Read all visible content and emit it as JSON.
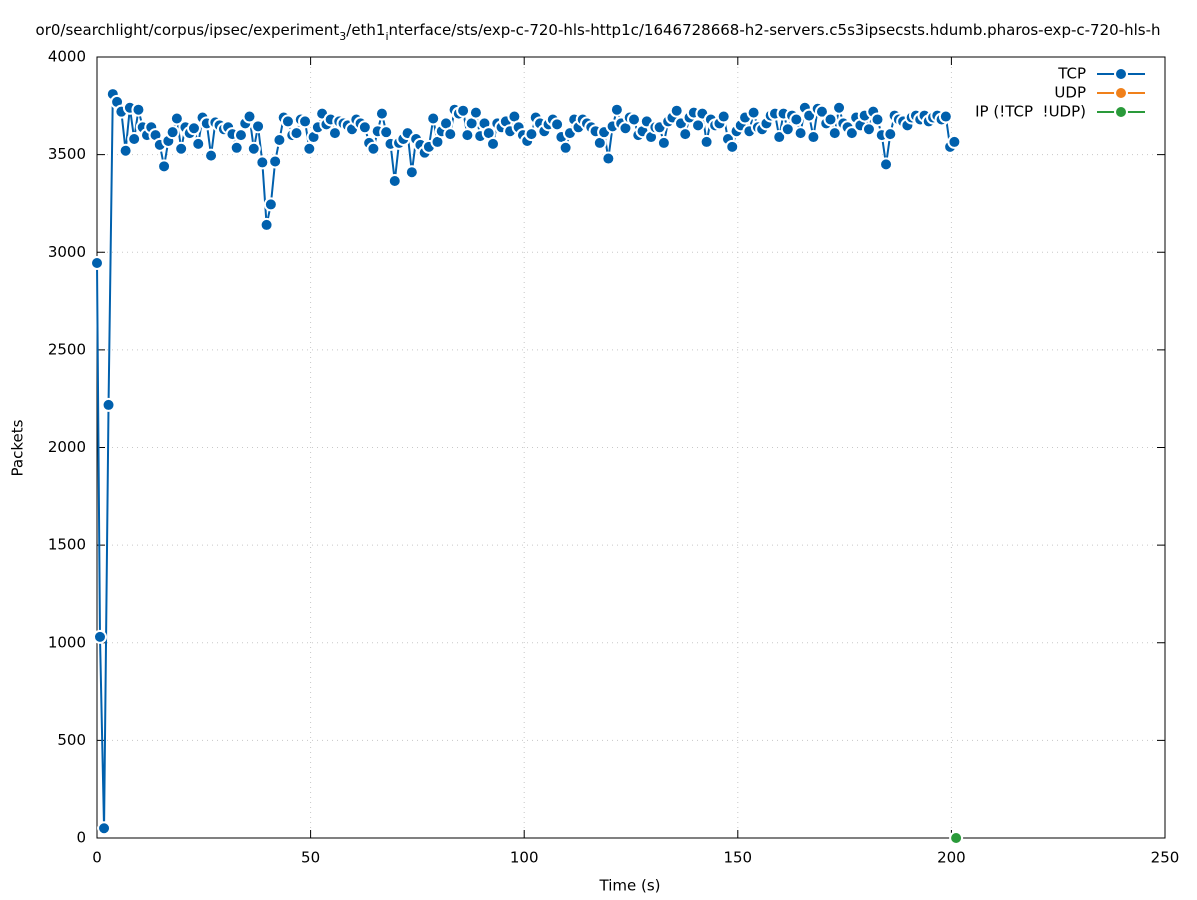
{
  "chart_data": {
    "type": "line",
    "title_segments": [
      "or0/searchlight/corpus/ipsec/experiment",
      "3",
      "/eth1",
      "i",
      "nterface/sts/exp-c-720-hls-http1c/1646728668-h2-servers.c5s3ipsecsts.hdumb.pharos-exp-c-720-hls-h"
    ],
    "xlabel": "Time (s)",
    "ylabel": "Packets",
    "xlim": [
      0,
      250
    ],
    "ylim": [
      0,
      4000
    ],
    "xticks": [
      0,
      50,
      100,
      150,
      200,
      250
    ],
    "yticks": [
      0,
      500,
      1000,
      1500,
      2000,
      2500,
      3000,
      3500,
      4000
    ],
    "grid": true,
    "legend": "top right",
    "series": [
      {
        "name": "TCP",
        "color": "#0060ad",
        "x": [
          0,
          0.7,
          1.65,
          2.7,
          3.7,
          4.7,
          5.7,
          6.7,
          7.7,
          8.7,
          9.7,
          10.7,
          11.7,
          12.7,
          13.7,
          14.7,
          15.7,
          16.7,
          17.7,
          18.7,
          19.7,
          20.7,
          21.7,
          22.7,
          23.7,
          24.7,
          25.7,
          26.7,
          27.7,
          28.7,
          29.7,
          30.7,
          31.7,
          32.7,
          33.7,
          34.7,
          35.7,
          36.7,
          37.7,
          38.7,
          39.7,
          40.7,
          41.7,
          42.7,
          43.7,
          44.7,
          45.7,
          46.7,
          47.7,
          48.7,
          49.7,
          50.7,
          51.7,
          52.7,
          53.7,
          54.7,
          55.7,
          56.7,
          57.7,
          58.7,
          59.7,
          60.7,
          61.7,
          62.7,
          63.7,
          64.7,
          65.7,
          66.7,
          67.7,
          68.7,
          69.7,
          70.7,
          71.7,
          72.7,
          73.7,
          74.7,
          75.7,
          76.7,
          77.7,
          78.7,
          79.7,
          80.7,
          81.7,
          82.7,
          83.7,
          84.7,
          85.7,
          86.7,
          87.7,
          88.7,
          89.7,
          90.7,
          91.7,
          92.7,
          93.7,
          94.7,
          95.7,
          96.7,
          97.7,
          98.7,
          99.7,
          100.7,
          101.7,
          102.7,
          103.7,
          104.7,
          105.7,
          106.7,
          107.7,
          108.7,
          109.7,
          110.7,
          111.7,
          112.7,
          113.7,
          114.7,
          115.7,
          116.7,
          117.7,
          118.7,
          119.7,
          120.7,
          121.7,
          122.7,
          123.7,
          124.7,
          125.7,
          126.7,
          127.7,
          128.7,
          129.7,
          130.7,
          131.7,
          132.7,
          133.7,
          134.7,
          135.7,
          136.7,
          137.7,
          138.7,
          139.7,
          140.7,
          141.7,
          142.7,
          143.7,
          144.7,
          145.7,
          146.7,
          147.7,
          148.7,
          149.7,
          150.7,
          151.7,
          152.7,
          153.7,
          154.7,
          155.7,
          156.7,
          157.7,
          158.7,
          159.7,
          160.7,
          161.7,
          162.7,
          163.7,
          164.7,
          165.7,
          166.7,
          167.7,
          168.7,
          169.7,
          170.7,
          171.7,
          172.7,
          173.7,
          174.7,
          175.7,
          176.7,
          177.7,
          178.7,
          179.7,
          180.7,
          181.7,
          182.7,
          183.7,
          184.7,
          185.7,
          186.7,
          187.7,
          188.7,
          189.7,
          190.7,
          191.7,
          192.7,
          193.7,
          194.7,
          195.7,
          196.7,
          197.7,
          198.7,
          199.7,
          200.7
        ],
        "values": [
          2945,
          1030,
          50,
          2218,
          3810,
          3770,
          3720,
          3520,
          3740,
          3580,
          3730,
          3640,
          3600,
          3640,
          3600,
          3550,
          3440,
          3570,
          3615,
          3685,
          3530,
          3640,
          3610,
          3635,
          3555,
          3690,
          3660,
          3495,
          3665,
          3650,
          3630,
          3640,
          3605,
          3535,
          3600,
          3660,
          3695,
          3530,
          3645,
          3460,
          3140,
          3245,
          3465,
          3575,
          3690,
          3670,
          3600,
          3610,
          3680,
          3670,
          3530,
          3590,
          3640,
          3710,
          3655,
          3680,
          3610,
          3670,
          3660,
          3650,
          3630,
          3680,
          3660,
          3640,
          3560,
          3530,
          3620,
          3710,
          3615,
          3555,
          3365,
          3560,
          3580,
          3610,
          3410,
          3580,
          3550,
          3510,
          3540,
          3685,
          3565,
          3620,
          3660,
          3605,
          3730,
          3710,
          3725,
          3600,
          3660,
          3715,
          3595,
          3660,
          3610,
          3555,
          3660,
          3640,
          3670,
          3620,
          3695,
          3640,
          3600,
          3570,
          3605,
          3690,
          3660,
          3620,
          3655,
          3680,
          3655,
          3590,
          3535,
          3610,
          3680,
          3640,
          3680,
          3660,
          3640,
          3620,
          3560,
          3615,
          3480,
          3645,
          3730,
          3660,
          3635,
          3690,
          3680,
          3600,
          3620,
          3670,
          3590,
          3640,
          3640,
          3560,
          3670,
          3690,
          3725,
          3660,
          3605,
          3690,
          3715,
          3650,
          3710,
          3565,
          3680,
          3650,
          3660,
          3695,
          3580,
          3540,
          3620,
          3650,
          3690,
          3620,
          3715,
          3640,
          3630,
          3660,
          3700,
          3710,
          3590,
          3710,
          3630,
          3700,
          3680,
          3610,
          3740,
          3700,
          3590,
          3735,
          3720,
          3660,
          3680,
          3610,
          3740,
          3660,
          3640,
          3610,
          3690,
          3650,
          3700,
          3630,
          3720,
          3680,
          3600,
          3450,
          3605,
          3700,
          3680,
          3670,
          3650,
          3690,
          3700,
          3680,
          3700,
          3670,
          3690,
          3700,
          3680,
          3695,
          3540,
          3565
        ]
      },
      {
        "name": "UDP",
        "color": "#f0801a",
        "x": [],
        "values": []
      },
      {
        "name": "IP (!TCP  !UDP)",
        "color": "#2a9a3a",
        "x": [
          201.1
        ],
        "values": [
          0
        ]
      }
    ]
  }
}
